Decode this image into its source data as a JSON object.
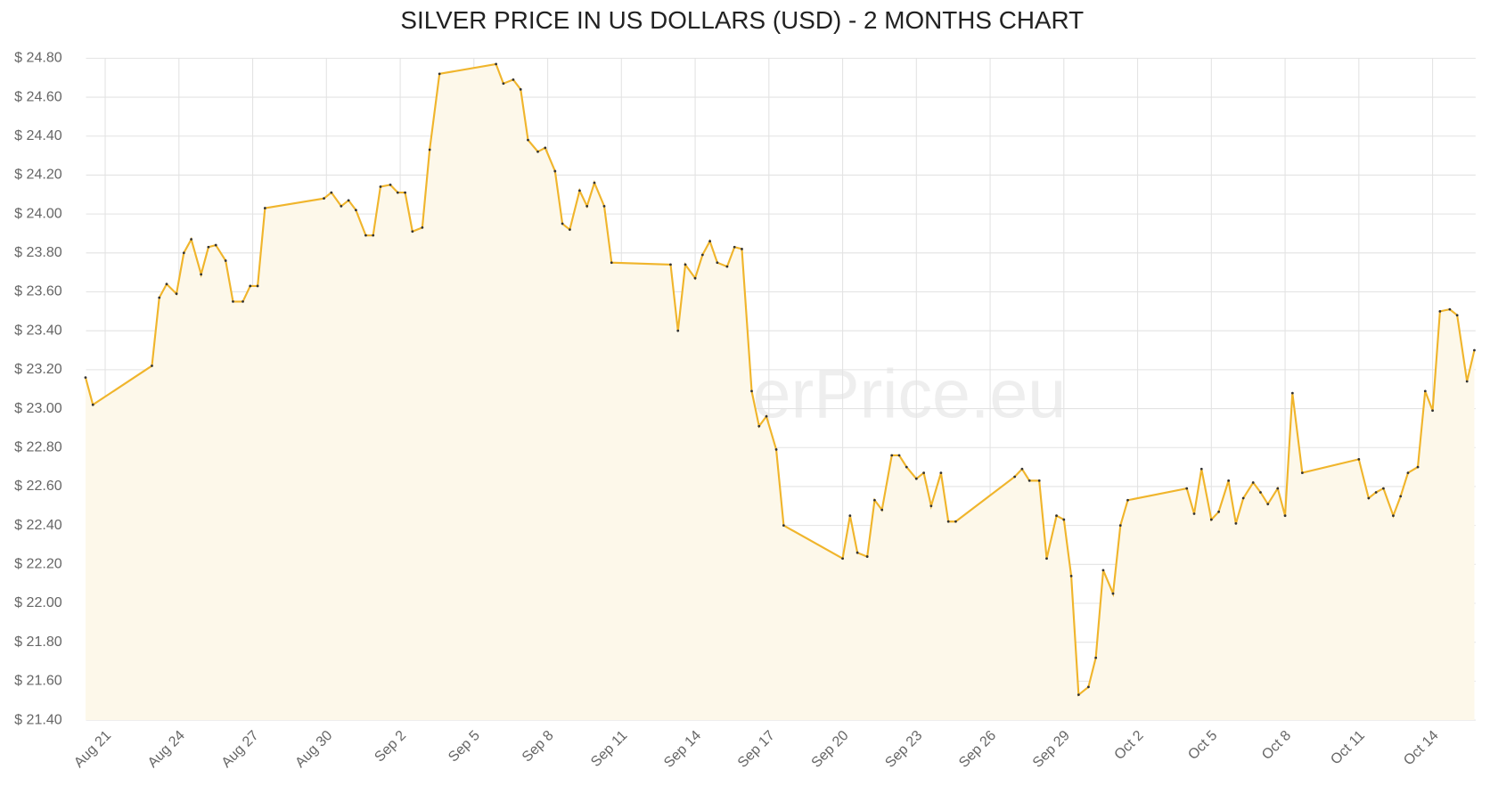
{
  "chart_data": {
    "type": "line",
    "title": "SILVER PRICE IN US DOLLARS (USD) - 2 MONTHS CHART",
    "watermark": "GoldSilverPrice.eu",
    "series": [
      {
        "name": "Silver",
        "color": "#f0b52c",
        "x": [
          -0.8,
          -0.5,
          1.9,
          2.2,
          2.5,
          2.9,
          3.2,
          3.5,
          3.9,
          4.2,
          4.5,
          4.9,
          5.2,
          5.6,
          5.9,
          6.2,
          6.5,
          8.9,
          9.2,
          9.6,
          9.9,
          10.2,
          10.6,
          10.9,
          11.2,
          11.6,
          11.9,
          12.2,
          12.5,
          12.9,
          13.2,
          13.6,
          15.9,
          16.2,
          16.6,
          16.9,
          17.2,
          17.6,
          17.9,
          18.3,
          18.6,
          18.9,
          19.3,
          19.6,
          19.9,
          20.3,
          20.6,
          23.0,
          23.3,
          23.6,
          24.0,
          24.3,
          24.6,
          24.9,
          25.3,
          25.6,
          25.9,
          26.3,
          26.6,
          26.9,
          27.3,
          27.6,
          30.0,
          30.3,
          30.6,
          31.0,
          31.3,
          31.6,
          32.0,
          32.3,
          32.6,
          33.0,
          33.3,
          33.6,
          34.0,
          34.3,
          34.6,
          37.0,
          37.3,
          37.6,
          38.0,
          38.3,
          38.7,
          39.0,
          39.3,
          39.6,
          40.0,
          40.3,
          40.6,
          41.0,
          41.3,
          41.6,
          44.0,
          44.3,
          44.6,
          45.0,
          45.3,
          45.7,
          46.0,
          46.3,
          46.7,
          47.0,
          47.3,
          47.7,
          48.0,
          48.3,
          48.7,
          51.0,
          51.4,
          51.7,
          52.0,
          52.4,
          52.7,
          53.0,
          53.4,
          53.7,
          54.0,
          54.3,
          54.7,
          55.0,
          55.4,
          55.7
        ],
        "values": [
          23.16,
          23.02,
          23.22,
          23.57,
          23.64,
          23.59,
          23.8,
          23.87,
          23.69,
          23.83,
          23.84,
          23.76,
          23.55,
          23.55,
          23.63,
          23.63,
          24.03,
          24.08,
          24.11,
          24.04,
          24.07,
          24.02,
          23.89,
          23.89,
          24.14,
          24.15,
          24.11,
          24.11,
          23.91,
          23.93,
          24.33,
          24.72,
          24.77,
          24.67,
          24.69,
          24.64,
          24.38,
          24.32,
          24.34,
          24.22,
          23.95,
          23.92,
          24.12,
          24.04,
          24.16,
          24.04,
          23.75,
          23.74,
          23.4,
          23.74,
          23.67,
          23.79,
          23.86,
          23.75,
          23.73,
          23.83,
          23.82,
          23.09,
          22.91,
          22.96,
          22.79,
          22.4,
          22.23,
          22.45,
          22.26,
          22.24,
          22.53,
          22.48,
          22.76,
          22.76,
          22.7,
          22.64,
          22.67,
          22.5,
          22.67,
          22.42,
          22.42,
          22.65,
          22.69,
          22.63,
          22.63,
          22.23,
          22.45,
          22.43,
          22.14,
          21.53,
          21.57,
          21.72,
          22.17,
          22.05,
          22.4,
          22.53,
          22.59,
          22.46,
          22.69,
          22.43,
          22.47,
          22.63,
          22.41,
          22.54,
          22.62,
          22.57,
          22.51,
          22.59,
          22.45,
          23.08,
          22.67,
          22.74,
          22.54,
          22.57,
          22.59,
          22.45,
          22.55,
          22.67,
          22.7,
          23.09,
          22.99,
          23.5,
          23.51,
          23.48,
          23.14,
          23.3
        ]
      }
    ],
    "xlim": [
      -0.78,
      55.75
    ],
    "xticks": [
      {
        "value": 0,
        "label": "Aug 21"
      },
      {
        "value": 3,
        "label": "Aug 24"
      },
      {
        "value": 6,
        "label": "Aug 27"
      },
      {
        "value": 9,
        "label": "Aug 30"
      },
      {
        "value": 12,
        "label": "Sep 2"
      },
      {
        "value": 15,
        "label": "Sep 5"
      },
      {
        "value": 18,
        "label": "Sep 8"
      },
      {
        "value": 21,
        "label": "Sep 11"
      },
      {
        "value": 24,
        "label": "Sep 14"
      },
      {
        "value": 27,
        "label": "Sep 17"
      },
      {
        "value": 30,
        "label": "Sep 20"
      },
      {
        "value": 33,
        "label": "Sep 23"
      },
      {
        "value": 36,
        "label": "Sep 26"
      },
      {
        "value": 39,
        "label": "Sep 29"
      },
      {
        "value": 42,
        "label": "Oct 2"
      },
      {
        "value": 45,
        "label": "Oct 5"
      },
      {
        "value": 48,
        "label": "Oct 8"
      },
      {
        "value": 51,
        "label": "Oct 11"
      },
      {
        "value": 54,
        "label": "Oct 14"
      }
    ],
    "ylim": [
      21.4,
      24.8
    ],
    "yticks": [
      {
        "value": 21.4,
        "label": "$ 21.40"
      },
      {
        "value": 21.6,
        "label": "$ 21.60"
      },
      {
        "value": 21.8,
        "label": "$ 21.80"
      },
      {
        "value": 22.0,
        "label": "$ 22.00"
      },
      {
        "value": 22.2,
        "label": "$ 22.20"
      },
      {
        "value": 22.4,
        "label": "$ 22.40"
      },
      {
        "value": 22.6,
        "label": "$ 22.60"
      },
      {
        "value": 22.8,
        "label": "$ 22.80"
      },
      {
        "value": 23.0,
        "label": "$ 23.00"
      },
      {
        "value": 23.2,
        "label": "$ 23.20"
      },
      {
        "value": 23.4,
        "label": "$ 23.40"
      },
      {
        "value": 23.6,
        "label": "$ 23.60"
      },
      {
        "value": 23.8,
        "label": "$ 23.80"
      },
      {
        "value": 24.0,
        "label": "$ 24.00"
      },
      {
        "value": 24.2,
        "label": "$ 24.20"
      },
      {
        "value": 24.4,
        "label": "$ 24.40"
      },
      {
        "value": 24.6,
        "label": "$ 24.60"
      },
      {
        "value": 24.8,
        "label": "$ 24.80"
      }
    ],
    "grid": true,
    "fill": "#fdf8ea"
  }
}
